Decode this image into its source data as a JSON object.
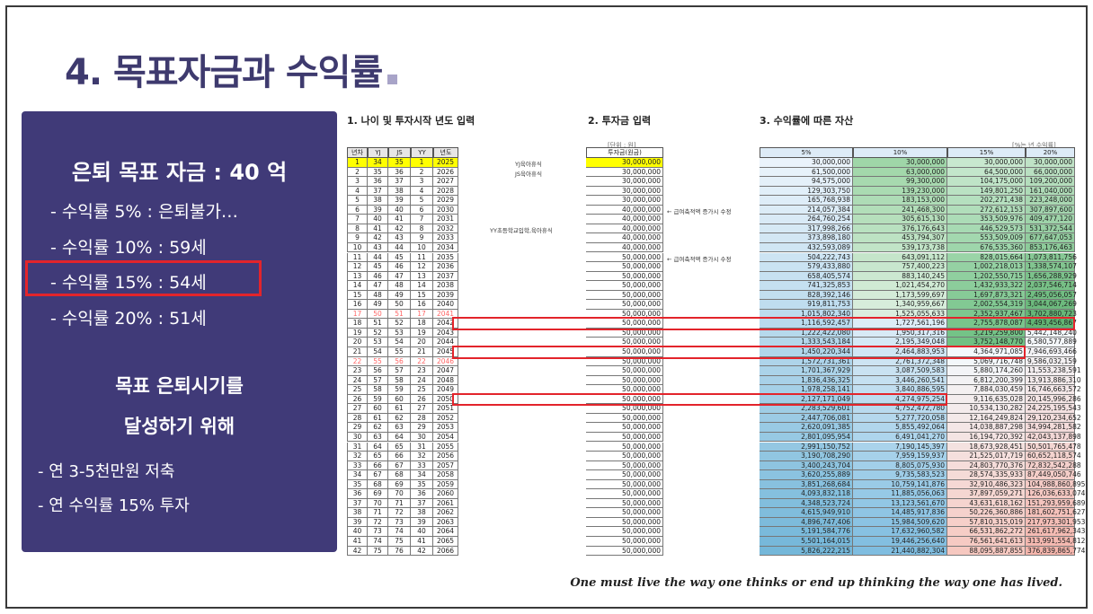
{
  "title": "4. 목표자금과 수익률",
  "panel": {
    "goal_heading": "은퇴 목표 자금 : 40 억",
    "rates": [
      "- 수익률 5% : 은퇴불가…",
      "- 수익률 10% : 59세",
      "- 수익률 15% : 54세",
      "- 수익률 20% : 51세"
    ],
    "timing_line1": "목표 은퇴시기를",
    "timing_line2": "달성하기 위해",
    "tips": [
      "- 연 3-5천만원 저축",
      "- 연 수익률 15% 투자"
    ]
  },
  "sections": {
    "s1": "1. 나이 및 투자시작 년도 입력",
    "s2": "2. 투자금 입력",
    "s3": "3. 수익률에 따른 자산"
  },
  "units": {
    "invest": "[단위 : 원]",
    "rate": "[%는 년 수익률]"
  },
  "columns": [
    "년차",
    "YJ",
    "JS",
    "YY",
    "년도",
    "투자금(원금)",
    "5%",
    "10%",
    "15%",
    "20%"
  ],
  "notes": [
    {
      "row": 0,
      "text": "YJ육아휴식"
    },
    {
      "row": 1,
      "text": "JS육아휴식"
    },
    {
      "row": 7,
      "text": "YY초등학교입학,육아휴식"
    }
  ],
  "arrow_notes": [
    {
      "row": 5,
      "text": "← 급여축적액 증가시 수정"
    },
    {
      "row": 10,
      "text": "← 급여축적액 증가시 수정"
    }
  ],
  "rows": [
    [
      "1",
      "34",
      "35",
      "1",
      "2025",
      "30,000,000",
      "30,000,000",
      "30,000,000",
      "30,000,000",
      "30,000,000"
    ],
    [
      "2",
      "35",
      "36",
      "2",
      "2026",
      "30,000,000",
      "61,500,000",
      "63,000,000",
      "64,500,000",
      "66,000,000"
    ],
    [
      "3",
      "36",
      "37",
      "3",
      "2027",
      "30,000,000",
      "94,575,000",
      "99,300,000",
      "104,175,000",
      "109,200,000"
    ],
    [
      "4",
      "37",
      "38",
      "4",
      "2028",
      "30,000,000",
      "129,303,750",
      "139,230,000",
      "149,801,250",
      "161,040,000"
    ],
    [
      "5",
      "38",
      "39",
      "5",
      "2029",
      "30,000,000",
      "165,768,938",
      "183,153,000",
      "202,271,438",
      "223,248,000"
    ],
    [
      "6",
      "39",
      "40",
      "6",
      "2030",
      "40,000,000",
      "214,057,384",
      "241,468,300",
      "272,612,153",
      "307,897,600"
    ],
    [
      "7",
      "40",
      "41",
      "7",
      "2031",
      "40,000,000",
      "264,760,254",
      "305,615,130",
      "353,509,976",
      "409,477,120"
    ],
    [
      "8",
      "41",
      "42",
      "8",
      "2032",
      "40,000,000",
      "317,998,266",
      "376,176,643",
      "446,529,573",
      "531,372,544"
    ],
    [
      "9",
      "42",
      "43",
      "9",
      "2033",
      "40,000,000",
      "373,898,180",
      "453,794,307",
      "553,509,009",
      "677,647,053"
    ],
    [
      "10",
      "43",
      "44",
      "10",
      "2034",
      "40,000,000",
      "432,593,089",
      "539,173,738",
      "676,535,360",
      "853,176,463"
    ],
    [
      "11",
      "44",
      "45",
      "11",
      "2035",
      "50,000,000",
      "504,222,743",
      "643,091,112",
      "828,015,664",
      "1,073,811,756"
    ],
    [
      "12",
      "45",
      "46",
      "12",
      "2036",
      "50,000,000",
      "579,433,880",
      "757,400,223",
      "1,002,218,013",
      "1,338,574,107"
    ],
    [
      "13",
      "46",
      "47",
      "13",
      "2037",
      "50,000,000",
      "658,405,574",
      "883,140,245",
      "1,202,550,715",
      "1,656,288,929"
    ],
    [
      "14",
      "47",
      "48",
      "14",
      "2038",
      "50,000,000",
      "741,325,853",
      "1,021,454,270",
      "1,432,933,322",
      "2,037,546,714"
    ],
    [
      "15",
      "48",
      "49",
      "15",
      "2039",
      "50,000,000",
      "828,392,146",
      "1,173,599,697",
      "1,697,873,321",
      "2,495,056,057"
    ],
    [
      "16",
      "49",
      "50",
      "16",
      "2040",
      "50,000,000",
      "919,811,753",
      "1,340,959,667",
      "2,002,554,319",
      "3,044,067,269"
    ],
    [
      "17",
      "50",
      "51",
      "17",
      "2041",
      "50,000,000",
      "1,015,802,340",
      "1,525,055,633",
      "2,352,937,467",
      "3,702,880,723"
    ],
    [
      "18",
      "51",
      "52",
      "18",
      "2042",
      "50,000,000",
      "1,116,592,457",
      "1,727,561,196",
      "2,755,878,087",
      "4,493,456,867"
    ],
    [
      "19",
      "52",
      "53",
      "19",
      "2043",
      "50,000,000",
      "1,222,422,080",
      "1,950,317,316",
      "3,219,259,800",
      "5,442,148,240"
    ],
    [
      "20",
      "53",
      "54",
      "20",
      "2044",
      "50,000,000",
      "1,333,543,184",
      "2,195,349,048",
      "3,752,148,770",
      "6,580,577,889"
    ],
    [
      "21",
      "54",
      "55",
      "21",
      "2045",
      "50,000,000",
      "1,450,220,344",
      "2,464,883,953",
      "4,364,971,085",
      "7,946,693,466"
    ],
    [
      "22",
      "55",
      "56",
      "22",
      "2046",
      "50,000,000",
      "1,572,731,361",
      "2,761,372,348",
      "5,069,716,748",
      "9,586,032,159"
    ],
    [
      "23",
      "56",
      "57",
      "23",
      "2047",
      "50,000,000",
      "1,701,367,929",
      "3,087,509,583",
      "5,880,174,260",
      "11,553,238,591"
    ],
    [
      "24",
      "57",
      "58",
      "24",
      "2048",
      "50,000,000",
      "1,836,436,325",
      "3,446,260,541",
      "6,812,200,399",
      "13,913,886,310"
    ],
    [
      "25",
      "58",
      "59",
      "25",
      "2049",
      "50,000,000",
      "1,978,258,141",
      "3,840,886,595",
      "7,884,030,459",
      "16,746,663,572"
    ],
    [
      "26",
      "59",
      "60",
      "26",
      "2050",
      "50,000,000",
      "2,127,171,049",
      "4,274,975,254",
      "9,116,635,028",
      "20,145,996,286"
    ],
    [
      "27",
      "60",
      "61",
      "27",
      "2051",
      "50,000,000",
      "2,283,529,601",
      "4,752,472,780",
      "10,534,130,282",
      "24,225,195,543"
    ],
    [
      "28",
      "61",
      "62",
      "28",
      "2052",
      "50,000,000",
      "2,447,706,081",
      "5,277,720,058",
      "12,164,249,824",
      "29,120,234,652"
    ],
    [
      "29",
      "62",
      "63",
      "29",
      "2053",
      "50,000,000",
      "2,620,091,385",
      "5,855,492,064",
      "14,038,887,298",
      "34,994,281,582"
    ],
    [
      "30",
      "63",
      "64",
      "30",
      "2054",
      "50,000,000",
      "2,801,095,954",
      "6,491,041,270",
      "16,194,720,392",
      "42,043,137,898"
    ],
    [
      "31",
      "64",
      "65",
      "31",
      "2055",
      "50,000,000",
      "2,991,150,752",
      "7,190,145,397",
      "18,673,928,451",
      "50,501,765,478"
    ],
    [
      "32",
      "65",
      "66",
      "32",
      "2056",
      "50,000,000",
      "3,190,708,290",
      "7,959,159,937",
      "21,525,017,719",
      "60,652,118,574"
    ],
    [
      "33",
      "66",
      "67",
      "33",
      "2057",
      "50,000,000",
      "3,400,243,704",
      "8,805,075,930",
      "24,803,770,376",
      "72,832,542,288"
    ],
    [
      "34",
      "67",
      "68",
      "34",
      "2058",
      "50,000,000",
      "3,620,255,889",
      "9,735,583,523",
      "28,574,335,933",
      "87,449,050,746"
    ],
    [
      "35",
      "68",
      "69",
      "35",
      "2059",
      "50,000,000",
      "3,851,268,684",
      "10,759,141,876",
      "32,910,486,323",
      "104,988,860,895"
    ],
    [
      "36",
      "69",
      "70",
      "36",
      "2060",
      "50,000,000",
      "4,093,832,118",
      "11,885,056,063",
      "37,897,059,271",
      "126,036,633,074"
    ],
    [
      "37",
      "70",
      "71",
      "37",
      "2061",
      "50,000,000",
      "4,348,523,724",
      "13,123,561,670",
      "43,631,618,162",
      "151,293,959,689"
    ],
    [
      "38",
      "71",
      "72",
      "38",
      "2062",
      "50,000,000",
      "4,615,949,910",
      "14,485,917,836",
      "50,226,360,886",
      "181,602,751,627"
    ],
    [
      "39",
      "72",
      "73",
      "39",
      "2063",
      "50,000,000",
      "4,896,747,406",
      "15,984,509,620",
      "57,810,315,019",
      "217,973,301,953"
    ],
    [
      "40",
      "73",
      "74",
      "40",
      "2064",
      "50,000,000",
      "5,191,584,776",
      "17,632,960,582",
      "66,531,862,272",
      "261,617,962,343"
    ],
    [
      "41",
      "74",
      "75",
      "41",
      "2065",
      "50,000,000",
      "5,501,164,015",
      "19,446,256,640",
      "76,561,641,613",
      "313,991,554,812"
    ],
    [
      "42",
      "75",
      "76",
      "42",
      "2066",
      "50,000,000",
      "5,826,222,215",
      "21,440,882,304",
      "88,095,887,855",
      "376,839,865,774"
    ]
  ],
  "highlight_rows": [
    17,
    20,
    25
  ],
  "pink_rows": [
    16,
    21
  ],
  "yellow_row": 0,
  "colors": {
    "panel": "#403a78",
    "title": "#3e3a6e",
    "highlight": "#e3242b",
    "invest_yellow": "#ffff00",
    "green_dark": "#63be7b",
    "green_light": "#e8f5e9",
    "blue_light": "#ddebf7",
    "blue_dark": "#5b9bd5",
    "pink": "#f8cbad",
    "age_pink": "#ff6666"
  },
  "quote": "One must live the way one thinks or end up thinking the way one has lived."
}
